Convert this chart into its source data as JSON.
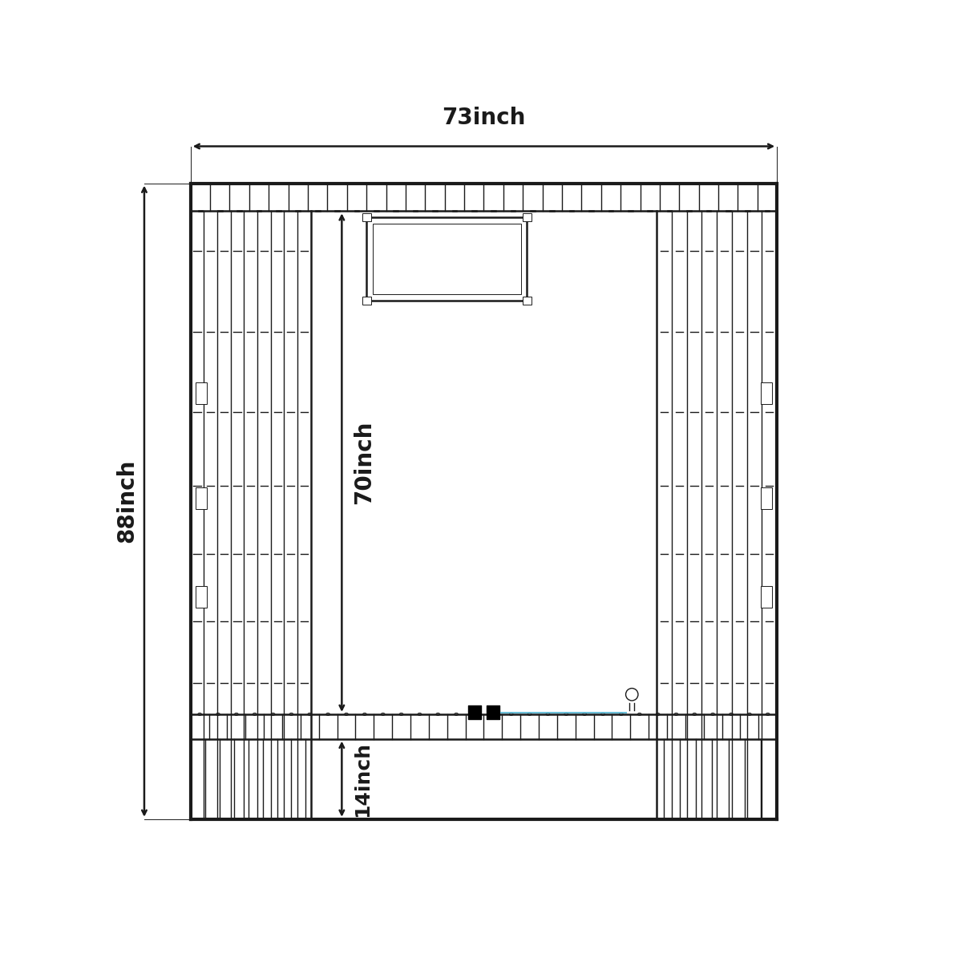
{
  "bg_color": "#ffffff",
  "line_color": "#1a1a1a",
  "dim_color": "#000000",
  "blue_color": "#5bb8d4",
  "width_label": "73inch",
  "height_label": "88inch",
  "depth_label": "70inch",
  "porch_label": "14inch",
  "figsize": [
    12,
    12
  ],
  "dpi": 100
}
